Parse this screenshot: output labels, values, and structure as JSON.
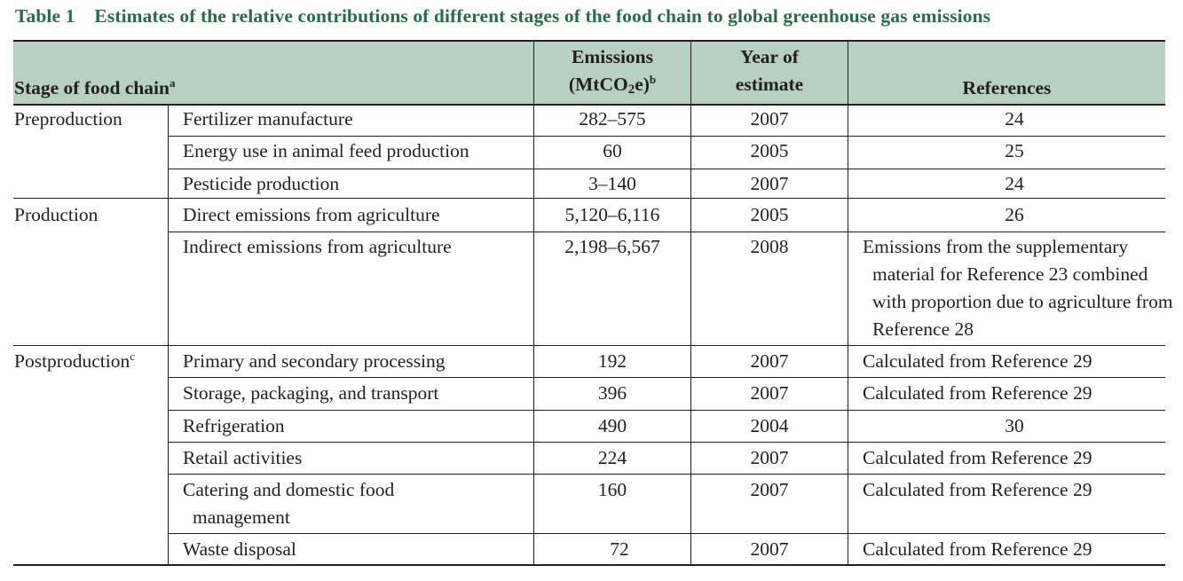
{
  "caption": {
    "label": "Table 1",
    "title": "Estimates of the relative contributions of different stages of the food chain to global greenhouse gas emissions"
  },
  "header": {
    "stage": "Stage of food chain",
    "stage_note": "a",
    "emissions_line1": "Emissions",
    "emissions_open": "(MtCO",
    "emissions_sub": "2",
    "emissions_close": "e)",
    "emissions_note": "b",
    "year_line1": "Year of",
    "year_line2": "estimate",
    "references": "References"
  },
  "groups": [
    {
      "stage": "Preproduction",
      "note": ""
    },
    {
      "stage": "Production",
      "note": ""
    },
    {
      "stage": "Postproduction",
      "note": "c"
    }
  ],
  "rows": [
    {
      "item": "Fertilizer manufacture",
      "emissions": "282–575",
      "year": "2007",
      "reference": "24"
    },
    {
      "item": "Energy use in animal feed production",
      "emissions": "60",
      "year": "2005",
      "reference": "25"
    },
    {
      "item": "Pesticide production",
      "emissions": "3–140",
      "year": "2007",
      "reference": "24"
    },
    {
      "item": "Direct emissions from agriculture",
      "emissions": "5,120–6,116",
      "year": "2005",
      "reference": "26"
    },
    {
      "item": "Indirect emissions from agriculture",
      "emissions": "2,198–6,567",
      "year": "2008",
      "reference": "Emissions from the supplementary material for Reference 23 combined with proportion due to agriculture from Reference 28"
    },
    {
      "item": "Primary and secondary processing",
      "emissions": "192",
      "year": "2007",
      "reference": "Calculated from Reference 29"
    },
    {
      "item": "Storage, packaging, and transport",
      "emissions": "396",
      "year": "2007",
      "reference": "Calculated from Reference 29"
    },
    {
      "item": "Refrigeration",
      "emissions": "490",
      "year": "2004",
      "reference": "30"
    },
    {
      "item": "Retail activities",
      "emissions": "224",
      "year": "2007",
      "reference": "Calculated from Reference 29"
    },
    {
      "item": "Catering and domestic food management",
      "emissions": "160",
      "year": "2007",
      "reference": "Calculated from Reference 29"
    },
    {
      "item": "Waste disposal",
      "emissions": "72",
      "year": "2007",
      "reference": "Calculated from Reference 29"
    }
  ]
}
